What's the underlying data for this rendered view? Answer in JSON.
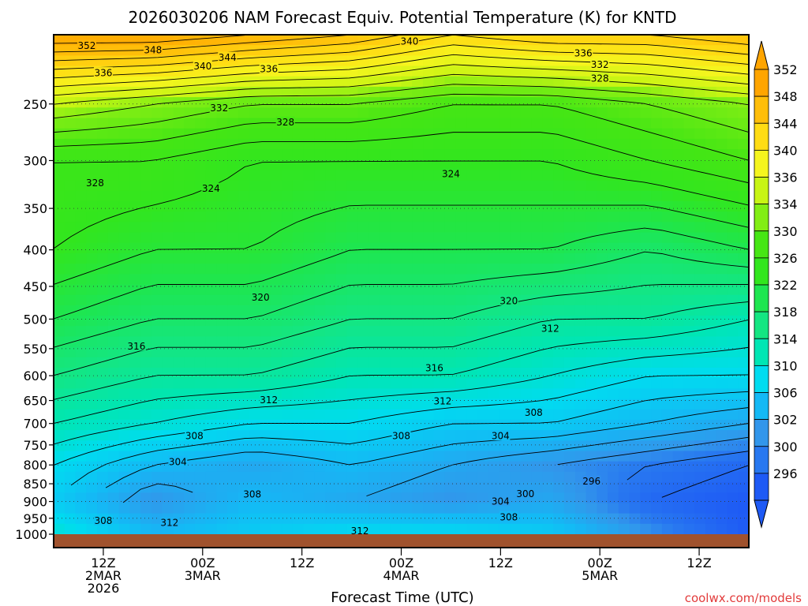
{
  "chart_data": {
    "type": "heatmap",
    "title": "2026030206 NAM Forecast Equiv. Potential Temperature (K) for KNTD",
    "xlabel": "Forecast Time (UTC)",
    "ylabel": "",
    "watermark": "coolwx.com/models",
    "y_axis": {
      "scale": "log-pressure",
      "range": [
        200,
        1000
      ],
      "ticks": [
        "250",
        "300",
        "350",
        "400",
        "450",
        "500",
        "550",
        "600",
        "650",
        "700",
        "750",
        "800",
        "850",
        "900",
        "950",
        "1000"
      ]
    },
    "x_axis": {
      "range_hours": [
        0,
        84
      ],
      "ticks": [
        {
          "hour": 6,
          "line1": "12Z",
          "line2": "2MAR",
          "line3": "2026"
        },
        {
          "hour": 18,
          "line1": "00Z",
          "line2": "3MAR",
          "line3": ""
        },
        {
          "hour": 30,
          "line1": "12Z",
          "line2": "",
          "line3": ""
        },
        {
          "hour": 42,
          "line1": "00Z",
          "line2": "4MAR",
          "line3": ""
        },
        {
          "hour": 54,
          "line1": "12Z",
          "line2": "",
          "line3": ""
        },
        {
          "hour": 66,
          "line1": "00Z",
          "line2": "5MAR",
          "line3": ""
        },
        {
          "hour": 78,
          "line1": "12Z",
          "line2": "",
          "line3": ""
        }
      ]
    },
    "colorbar": {
      "unit": "K",
      "levels": [
        {
          "value": 296,
          "color": "#1e5af5"
        },
        {
          "value": 300,
          "color": "#2878f0"
        },
        {
          "value": 302,
          "color": "#3296eb"
        },
        {
          "value": 306,
          "color": "#14b9f5"
        },
        {
          "value": 310,
          "color": "#00dcf0"
        },
        {
          "value": 314,
          "color": "#00e6b4"
        },
        {
          "value": 318,
          "color": "#14e682"
        },
        {
          "value": 322,
          "color": "#1ee650"
        },
        {
          "value": 326,
          "color": "#32e61e"
        },
        {
          "value": 330,
          "color": "#46e614"
        },
        {
          "value": 334,
          "color": "#82ee14"
        },
        {
          "value": 336,
          "color": "#c8f514"
        },
        {
          "value": 340,
          "color": "#f5f51e"
        },
        {
          "value": 344,
          "color": "#ffdc14"
        },
        {
          "value": 348,
          "color": "#ffbe0a"
        },
        {
          "value": 352,
          "color": "#ffa500"
        }
      ]
    },
    "field": {
      "description_levels_hpa": [
        200,
        250,
        300,
        400,
        500,
        600,
        700,
        800,
        900,
        1000
      ],
      "hours": [
        0,
        12,
        24,
        36,
        48,
        60,
        72,
        84
      ],
      "theta_e_k": [
        [
          352,
          352,
          350,
          348,
          344,
          346,
          346,
          348
        ],
        [
          336,
          334,
          332,
          332,
          330,
          330,
          332,
          334
        ],
        [
          328,
          328,
          326,
          326,
          326,
          326,
          328,
          330
        ],
        [
          326,
          324,
          324,
          322,
          322,
          322,
          320,
          322
        ],
        [
          322,
          320,
          320,
          318,
          318,
          316,
          316,
          314
        ],
        [
          318,
          316,
          316,
          314,
          314,
          312,
          310,
          310
        ],
        [
          314,
          312,
          310,
          310,
          308,
          308,
          306,
          304
        ],
        [
          310,
          306,
          304,
          306,
          304,
          302,
          300,
          298
        ],
        [
          308,
          302,
          306,
          304,
          302,
          304,
          298,
          296
        ],
        [
          312,
          306,
          308,
          310,
          310,
          308,
          302,
          296
        ]
      ]
    },
    "contour_labels": [
      {
        "text": "352",
        "hour": 4,
        "p": 207
      },
      {
        "text": "348",
        "hour": 12,
        "p": 210
      },
      {
        "text": "344",
        "hour": 21,
        "p": 215
      },
      {
        "text": "340",
        "hour": 18,
        "p": 221
      },
      {
        "text": "336",
        "hour": 6,
        "p": 226
      },
      {
        "text": "336",
        "hour": 26,
        "p": 223
      },
      {
        "text": "340",
        "hour": 43,
        "p": 204
      },
      {
        "text": "336",
        "hour": 64,
        "p": 212
      },
      {
        "text": "332",
        "hour": 66,
        "p": 220
      },
      {
        "text": "328",
        "hour": 66,
        "p": 230
      },
      {
        "text": "332",
        "hour": 20,
        "p": 253
      },
      {
        "text": "328",
        "hour": 28,
        "p": 265
      },
      {
        "text": "328",
        "hour": 5,
        "p": 322
      },
      {
        "text": "324",
        "hour": 19,
        "p": 328
      },
      {
        "text": "324",
        "hour": 48,
        "p": 313
      },
      {
        "text": "320",
        "hour": 25,
        "p": 466
      },
      {
        "text": "320",
        "hour": 55,
        "p": 471
      },
      {
        "text": "316",
        "hour": 10,
        "p": 545
      },
      {
        "text": "316",
        "hour": 46,
        "p": 585
      },
      {
        "text": "312",
        "hour": 60,
        "p": 515
      },
      {
        "text": "312",
        "hour": 26,
        "p": 648
      },
      {
        "text": "312",
        "hour": 47,
        "p": 651
      },
      {
        "text": "308",
        "hour": 58,
        "p": 675
      },
      {
        "text": "308",
        "hour": 17,
        "p": 728
      },
      {
        "text": "308",
        "hour": 42,
        "p": 728
      },
      {
        "text": "304",
        "hour": 54,
        "p": 728
      },
      {
        "text": "304",
        "hour": 15,
        "p": 791
      },
      {
        "text": "308",
        "hour": 24,
        "p": 878
      },
      {
        "text": "300",
        "hour": 57,
        "p": 877
      },
      {
        "text": "304",
        "hour": 54,
        "p": 899
      },
      {
        "text": "296",
        "hour": 65,
        "p": 842
      },
      {
        "text": "308",
        "hour": 6,
        "p": 957
      },
      {
        "text": "312",
        "hour": 14,
        "p": 963
      },
      {
        "text": "308",
        "hour": 55,
        "p": 945
      },
      {
        "text": "312",
        "hour": 37,
        "p": 988
      }
    ]
  }
}
